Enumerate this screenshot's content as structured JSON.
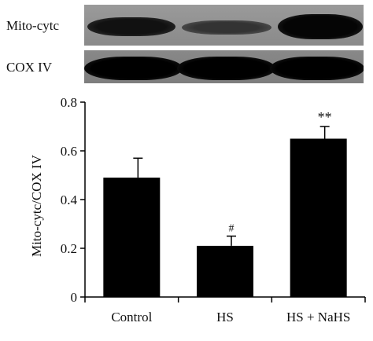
{
  "blot": {
    "rows": [
      {
        "label": "Mito-cytc"
      },
      {
        "label": "COX IV"
      }
    ]
  },
  "chart_data": {
    "type": "bar",
    "categories": [
      "Control",
      "HS",
      "HS + NaHS"
    ],
    "values": [
      0.49,
      0.21,
      0.65
    ],
    "errors": [
      0.08,
      0.04,
      0.05
    ],
    "annotations": [
      "",
      "#",
      "**"
    ],
    "xlabel": "",
    "ylabel": "Mito-cytc/COX IV",
    "ylim": [
      0,
      0.8
    ],
    "yticks": [
      "0",
      "0.2",
      "0.4",
      "0.6",
      "0.8"
    ],
    "grid": false,
    "colors": {
      "bar": "#000000"
    }
  }
}
